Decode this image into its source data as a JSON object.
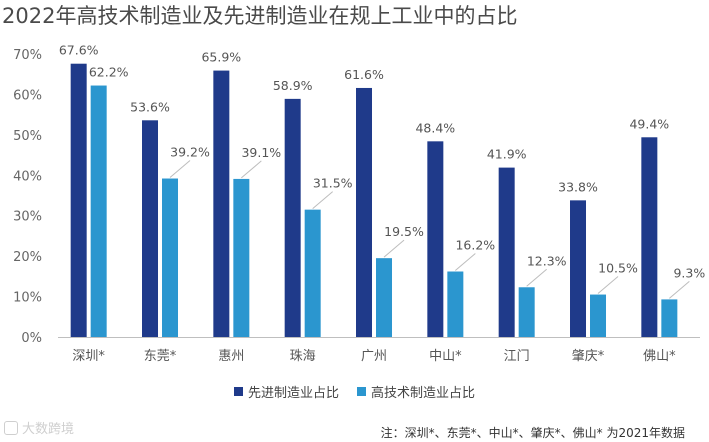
{
  "chart_data": {
    "type": "bar",
    "title": "2022年高技术制造业及先进制造业在规上工业中的占比",
    "categories": [
      "深圳*",
      "东莞*",
      "惠州",
      "珠海",
      "广州",
      "中山*",
      "江门",
      "肇庆*",
      "佛山*"
    ],
    "series": [
      {
        "name": "先进制造业占比",
        "values": [
          67.6,
          53.6,
          65.9,
          58.9,
          61.6,
          48.4,
          41.9,
          33.8,
          49.4
        ],
        "labels": [
          "67.6%",
          "53.6%",
          "65.9%",
          "58.9%",
          "61.6%",
          "48.4%",
          "41.9%",
          "33.8%",
          "49.4%"
        ],
        "color": "#1f3a8a"
      },
      {
        "name": "高技术制造业占比",
        "values": [
          62.2,
          39.2,
          39.1,
          31.5,
          19.5,
          16.2,
          12.3,
          10.5,
          9.3
        ],
        "labels": [
          "62.2%",
          "39.2%",
          "39.1%",
          "31.5%",
          "19.5%",
          "16.2%",
          "12.3%",
          "10.5%",
          "9.3%"
        ],
        "color": "#2b96cf"
      }
    ],
    "ylim": [
      0,
      70
    ],
    "yticks": [
      {
        "value": 0,
        "label": "0%"
      },
      {
        "value": 10,
        "label": "10%"
      },
      {
        "value": 20,
        "label": "20%"
      },
      {
        "value": 30,
        "label": "30%"
      },
      {
        "value": 40,
        "label": "40%"
      },
      {
        "value": 50,
        "label": "50%"
      },
      {
        "value": 60,
        "label": "60%"
      },
      {
        "value": 70,
        "label": "70%"
      }
    ],
    "grid": false,
    "legend": "bottom-center"
  },
  "footnote": "注：深圳*、东莞*、中山*、肇庆*、佛山* 为2021年数据",
  "watermark": "大数跨境"
}
